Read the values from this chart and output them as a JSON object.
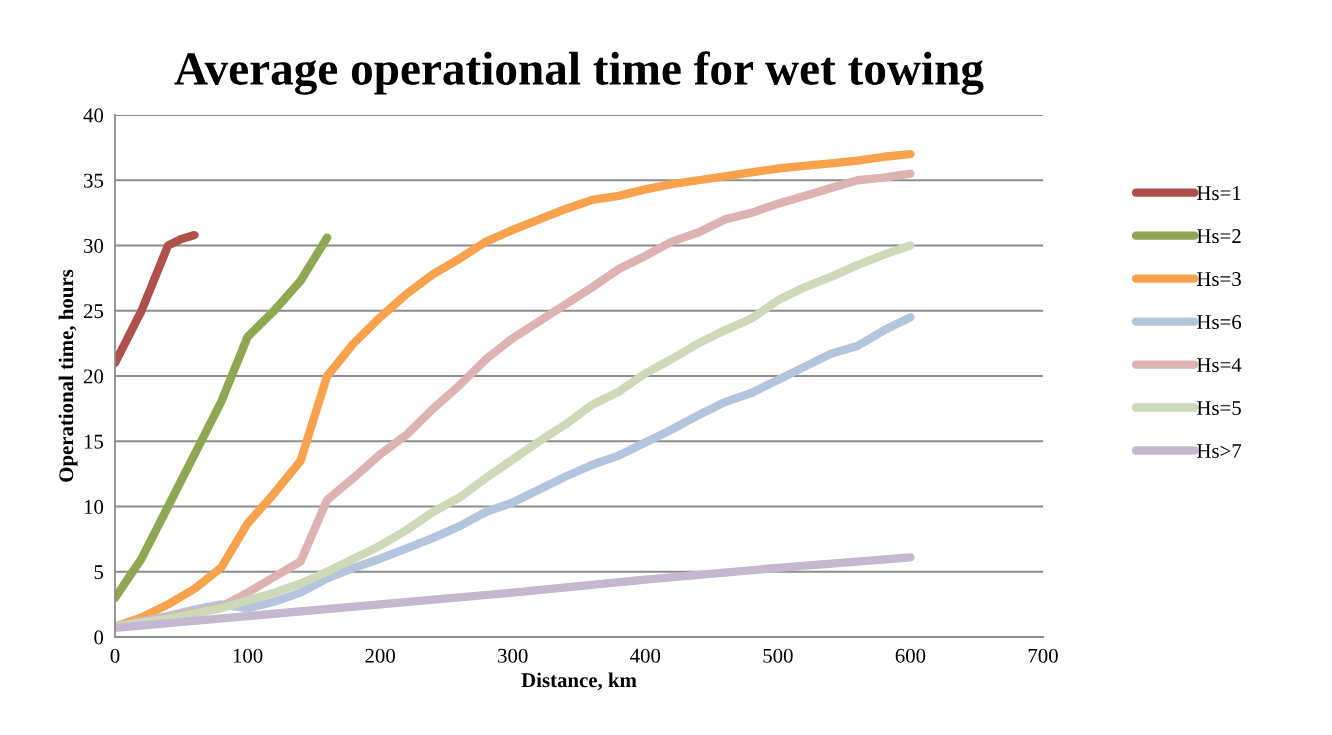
{
  "chart_data": {
    "type": "line",
    "title": "Average operational time for wet towing",
    "xlabel": "Distance, km",
    "ylabel": "Operational time, hours",
    "xlim": [
      0,
      700
    ],
    "xticks": [
      0,
      100,
      200,
      300,
      400,
      500,
      600,
      700
    ],
    "ylim": [
      0,
      40
    ],
    "yticks": [
      0,
      5,
      10,
      15,
      20,
      25,
      30,
      35,
      40
    ],
    "grid": "y",
    "legend": "right",
    "marker": "none",
    "line_style": "solid",
    "series": [
      {
        "name": "Hs=1",
        "color": "#b0504b",
        "x": [
          0,
          20,
          40,
          50,
          60
        ],
        "values": [
          21,
          25,
          30,
          30.5,
          30.8
        ]
      },
      {
        "name": "Hs=2",
        "color": "#8ea753",
        "x": [
          0,
          20,
          40,
          60,
          80,
          100,
          120,
          140,
          160
        ],
        "values": [
          3,
          6,
          10,
          14,
          18,
          23,
          25,
          27.3,
          30.6
        ]
      },
      {
        "name": "Hs=3",
        "color": "#f8a24d",
        "x": [
          0,
          20,
          40,
          60,
          80,
          100,
          120,
          140,
          160,
          180,
          200,
          220,
          240,
          260,
          280,
          300,
          320,
          340,
          360,
          380,
          400,
          420,
          440,
          460,
          480,
          500,
          520,
          540,
          560,
          580,
          600
        ],
        "values": [
          0.8,
          1.5,
          2.5,
          3.7,
          5.3,
          8.7,
          11,
          13.5,
          20,
          22.5,
          24.5,
          26.3,
          27.8,
          29,
          30.3,
          31.2,
          32,
          32.8,
          33.5,
          33.8,
          34.3,
          34.7,
          35,
          35.3,
          35.6,
          35.9,
          36.1,
          36.3,
          36.5,
          36.8,
          37
        ]
      },
      {
        "name": "Hs=6",
        "color": "#b3c4dd",
        "x": [
          0,
          20,
          40,
          60,
          80,
          100,
          120,
          140,
          160,
          180,
          200,
          220,
          240,
          260,
          280,
          300,
          320,
          340,
          360,
          380,
          400,
          420,
          440,
          460,
          480,
          500,
          520,
          540,
          560,
          580,
          600
        ],
        "values": [
          0.8,
          1.2,
          1.6,
          2.1,
          2.5,
          2.2,
          2.7,
          3.4,
          4.5,
          5.3,
          6,
          6.8,
          7.6,
          8.5,
          9.6,
          10.3,
          11.3,
          12.3,
          13.2,
          13.9,
          14.9,
          15.9,
          17,
          18,
          18.7,
          19.7,
          20.7,
          21.7,
          22.3,
          23.5,
          24.5
        ]
      },
      {
        "name": "Hs=4",
        "color": "#ddb3b2",
        "x": [
          0,
          20,
          40,
          60,
          80,
          100,
          120,
          140,
          160,
          180,
          200,
          220,
          240,
          260,
          280,
          300,
          320,
          340,
          360,
          380,
          400,
          420,
          440,
          460,
          480,
          500,
          520,
          540,
          560,
          580,
          600
        ],
        "values": [
          0.8,
          1.2,
          1.5,
          1.9,
          2.3,
          3.4,
          4.6,
          5.8,
          10.5,
          12.2,
          14,
          15.5,
          17.5,
          19.3,
          21.3,
          22.9,
          24.2,
          25.5,
          26.8,
          28.2,
          29.2,
          30.3,
          31,
          32,
          32.5,
          33.2,
          33.8,
          34.4,
          35,
          35.2,
          35.5
        ]
      },
      {
        "name": "Hs=5",
        "color": "#cdd9b7",
        "x": [
          0,
          20,
          40,
          60,
          80,
          100,
          120,
          140,
          160,
          180,
          200,
          220,
          240,
          260,
          280,
          300,
          320,
          340,
          360,
          380,
          400,
          420,
          440,
          460,
          480,
          500,
          520,
          540,
          560,
          580,
          600
        ],
        "values": [
          0.8,
          1.1,
          1.4,
          1.8,
          2.2,
          2.8,
          3.4,
          4.1,
          5,
          6,
          7,
          8.2,
          9.6,
          10.7,
          12.2,
          13.6,
          15,
          16.3,
          17.8,
          18.8,
          20.2,
          21.3,
          22.5,
          23.5,
          24.4,
          25.8,
          26.8,
          27.6,
          28.5,
          29.3,
          30
        ]
      },
      {
        "name": "Hs>7",
        "color": "#c3b8d0",
        "x": [
          0,
          100,
          200,
          300,
          400,
          500,
          600
        ],
        "values": [
          0.7,
          1.6,
          2.5,
          3.4,
          4.4,
          5.3,
          6.1
        ]
      }
    ]
  }
}
